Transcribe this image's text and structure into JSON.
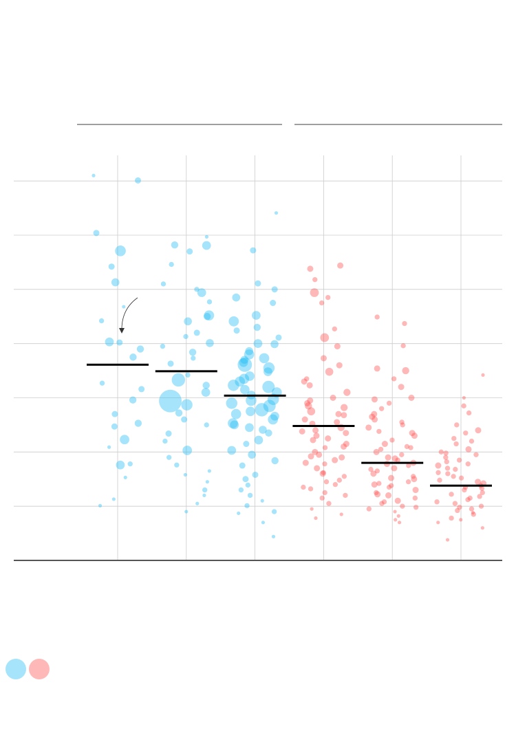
{
  "chart_data": {
    "type": "strip",
    "categories": [
      null,
      null,
      null,
      null,
      null,
      null
    ],
    "ylim": [
      0,
      7.5
    ],
    "yticks": [
      0,
      1,
      2,
      3,
      4,
      5,
      6,
      7
    ],
    "grid": true,
    "groups": [
      {
        "color": "#1fbcf5",
        "median": 3.61,
        "values": [
          7.1,
          7.01,
          6.04,
          5.71,
          5.42,
          5.13,
          4.68,
          4.42,
          4.03,
          4.02,
          3.9,
          3.75,
          3.27,
          3.16,
          2.96,
          2.7,
          2.53,
          2.47,
          2.23,
          2.09,
          1.78,
          1.76,
          1.53,
          1.13,
          1.01
        ],
        "sizes": [
          1,
          3,
          3,
          9,
          3,
          5,
          1,
          2,
          6,
          3,
          4,
          4,
          2,
          3,
          4,
          3,
          4,
          3,
          7,
          1,
          2,
          6,
          1,
          1,
          1
        ]
      },
      {
        "color": "#1fbcf5",
        "median": 3.49,
        "values": [
          5.97,
          5.82,
          5.81,
          5.7,
          5.46,
          5.1,
          4.94,
          4.77,
          4.52,
          4.41,
          4.5,
          4.13,
          4.01,
          3.84,
          3.73,
          3.63,
          3.42,
          3.33,
          3.23,
          2.94,
          2.87,
          2.72,
          2.34,
          2.03,
          1.9,
          1.76,
          1.58,
          1.3,
          1.2,
          0.9,
          5.0,
          4.2,
          3.95,
          3.1,
          2.6,
          2.2,
          1.45,
          1.05,
          2.5,
          1.65
        ],
        "sizes": [
          1,
          4,
          6,
          3,
          2,
          2,
          6,
          2,
          8,
          5,
          4,
          2,
          5,
          4,
          2,
          3,
          2,
          14,
          4,
          40,
          10,
          4,
          3,
          7,
          2,
          2,
          1,
          2,
          1,
          1,
          2,
          3,
          2,
          6,
          3,
          2,
          1,
          1,
          2,
          1
        ]
      },
      {
        "color": "#1fbcf5",
        "median": 3.04,
        "values": [
          6.41,
          5.72,
          5.11,
          5.0,
          4.85,
          4.75,
          4.52,
          4.41,
          4.24,
          4.11,
          3.99,
          3.86,
          3.73,
          3.61,
          3.48,
          3.35,
          3.23,
          3.1,
          2.97,
          2.85,
          2.78,
          2.66,
          2.53,
          2.41,
          2.22,
          2.03,
          1.84,
          1.58,
          1.39,
          1.2,
          1.01,
          0.87,
          0.7,
          0.44,
          4.3,
          4.0,
          3.8,
          3.7,
          3.55,
          3.4,
          3.3,
          3.2,
          3.05,
          2.95,
          2.9,
          2.75,
          2.6,
          2.5,
          2.35,
          2.15,
          1.95,
          1.75,
          1.5,
          1.3,
          0.9,
          3.65,
          3.15,
          2.7,
          2.45,
          1.1
        ],
        "sizes": [
          1,
          3,
          3,
          3,
          5,
          3,
          6,
          8,
          3,
          3,
          5,
          5,
          8,
          16,
          6,
          8,
          10,
          8,
          10,
          12,
          14,
          6,
          8,
          5,
          6,
          6,
          4,
          3,
          2,
          2,
          2,
          1,
          1,
          1,
          4,
          6,
          8,
          5,
          10,
          7,
          8,
          12,
          6,
          9,
          10,
          7,
          8,
          6,
          4,
          3,
          5,
          3,
          3,
          2,
          2,
          6,
          7,
          8,
          6,
          1
        ]
      },
      {
        "color": "#ff4d4d",
        "median": 2.48,
        "values": [
          5.44,
          5.38,
          5.18,
          4.94,
          4.85,
          4.75,
          4.27,
          4.11,
          3.95,
          3.73,
          3.6,
          3.48,
          3.35,
          3.23,
          3.1,
          3.0,
          2.9,
          2.82,
          2.75,
          2.68,
          2.6,
          2.52,
          2.45,
          2.38,
          2.3,
          2.22,
          2.15,
          2.08,
          2.0,
          1.92,
          1.85,
          1.78,
          1.7,
          1.62,
          1.55,
          1.48,
          1.4,
          1.32,
          1.25,
          1.15,
          1.05,
          0.95,
          0.85,
          0.78,
          2.95,
          2.7,
          2.55,
          2.4,
          2.25,
          2.1,
          1.95,
          1.8,
          1.6,
          1.45,
          1.2,
          3.3,
          2.85,
          2.35,
          1.9,
          1.35
        ],
        "sizes": [
          3,
          3,
          2,
          6,
          2,
          2,
          2,
          6,
          3,
          3,
          3,
          5,
          2,
          3,
          4,
          3,
          3,
          4,
          5,
          3,
          3,
          3,
          4,
          3,
          3,
          3,
          3,
          2,
          3,
          3,
          3,
          2,
          3,
          2,
          2,
          2,
          2,
          2,
          2,
          2,
          2,
          1,
          1,
          1,
          3,
          3,
          3,
          3,
          3,
          3,
          3,
          3,
          3,
          2,
          2,
          3,
          4,
          3,
          3,
          2
        ]
      },
      {
        "color": "#ff4d4d",
        "median": 1.8,
        "values": [
          4.49,
          4.37,
          3.96,
          3.54,
          3.35,
          2.97,
          2.8,
          2.65,
          2.55,
          2.45,
          2.38,
          2.3,
          2.22,
          2.15,
          2.08,
          2.0,
          1.95,
          1.9,
          1.85,
          1.8,
          1.75,
          1.7,
          1.65,
          1.6,
          1.55,
          1.5,
          1.45,
          1.4,
          1.35,
          1.3,
          1.25,
          1.2,
          1.15,
          1.1,
          1.05,
          1.0,
          0.95,
          0.9,
          0.82,
          0.7,
          3.5,
          3.2,
          3.0,
          2.7,
          2.5,
          2.35,
          2.1,
          1.88,
          1.68,
          1.52,
          1.38,
          1.22,
          1.08,
          0.98,
          0.75,
          2.9,
          2.6,
          2.05,
          1.78,
          1.42
        ],
        "sizes": [
          2,
          2,
          2,
          3,
          2,
          3,
          2,
          3,
          2,
          3,
          2,
          3,
          2,
          3,
          2,
          3,
          2,
          3,
          2,
          3,
          2,
          3,
          2,
          3,
          2,
          3,
          2,
          3,
          2,
          3,
          2,
          3,
          2,
          3,
          2,
          2,
          2,
          1,
          1,
          1,
          4,
          3,
          3,
          3,
          2,
          3,
          2,
          3,
          2,
          3,
          2,
          3,
          2,
          2,
          1,
          2,
          3,
          2,
          3,
          2
        ]
      },
      {
        "color": "#ff4d4d",
        "median": 1.38,
        "values": [
          3.42,
          3.0,
          2.85,
          2.72,
          2.5,
          2.35,
          2.25,
          2.15,
          2.05,
          1.98,
          1.9,
          1.82,
          1.75,
          1.68,
          1.6,
          1.52,
          1.45,
          1.38,
          1.3,
          1.22,
          1.15,
          1.08,
          1.0,
          0.92,
          0.85,
          0.78,
          0.7,
          0.6,
          0.38,
          2.4,
          2.0,
          1.7,
          1.55,
          1.42,
          1.35,
          1.25,
          1.12,
          0.98,
          0.88,
          1.85,
          1.62,
          1.48,
          1.18,
          1.05,
          2.2,
          1.95,
          1.78,
          1.33,
          0.95,
          0.75
        ],
        "sizes": [
          1,
          1,
          2,
          2,
          2,
          2,
          2,
          2,
          3,
          2,
          2,
          2,
          3,
          2,
          2,
          2,
          3,
          2,
          2,
          2,
          2,
          2,
          2,
          2,
          2,
          2,
          1,
          1,
          1,
          3,
          2,
          2,
          2,
          3,
          2,
          2,
          2,
          2,
          1,
          2,
          2,
          2,
          2,
          2,
          2,
          2,
          2,
          2,
          2,
          1
        ]
      }
    ]
  }
}
